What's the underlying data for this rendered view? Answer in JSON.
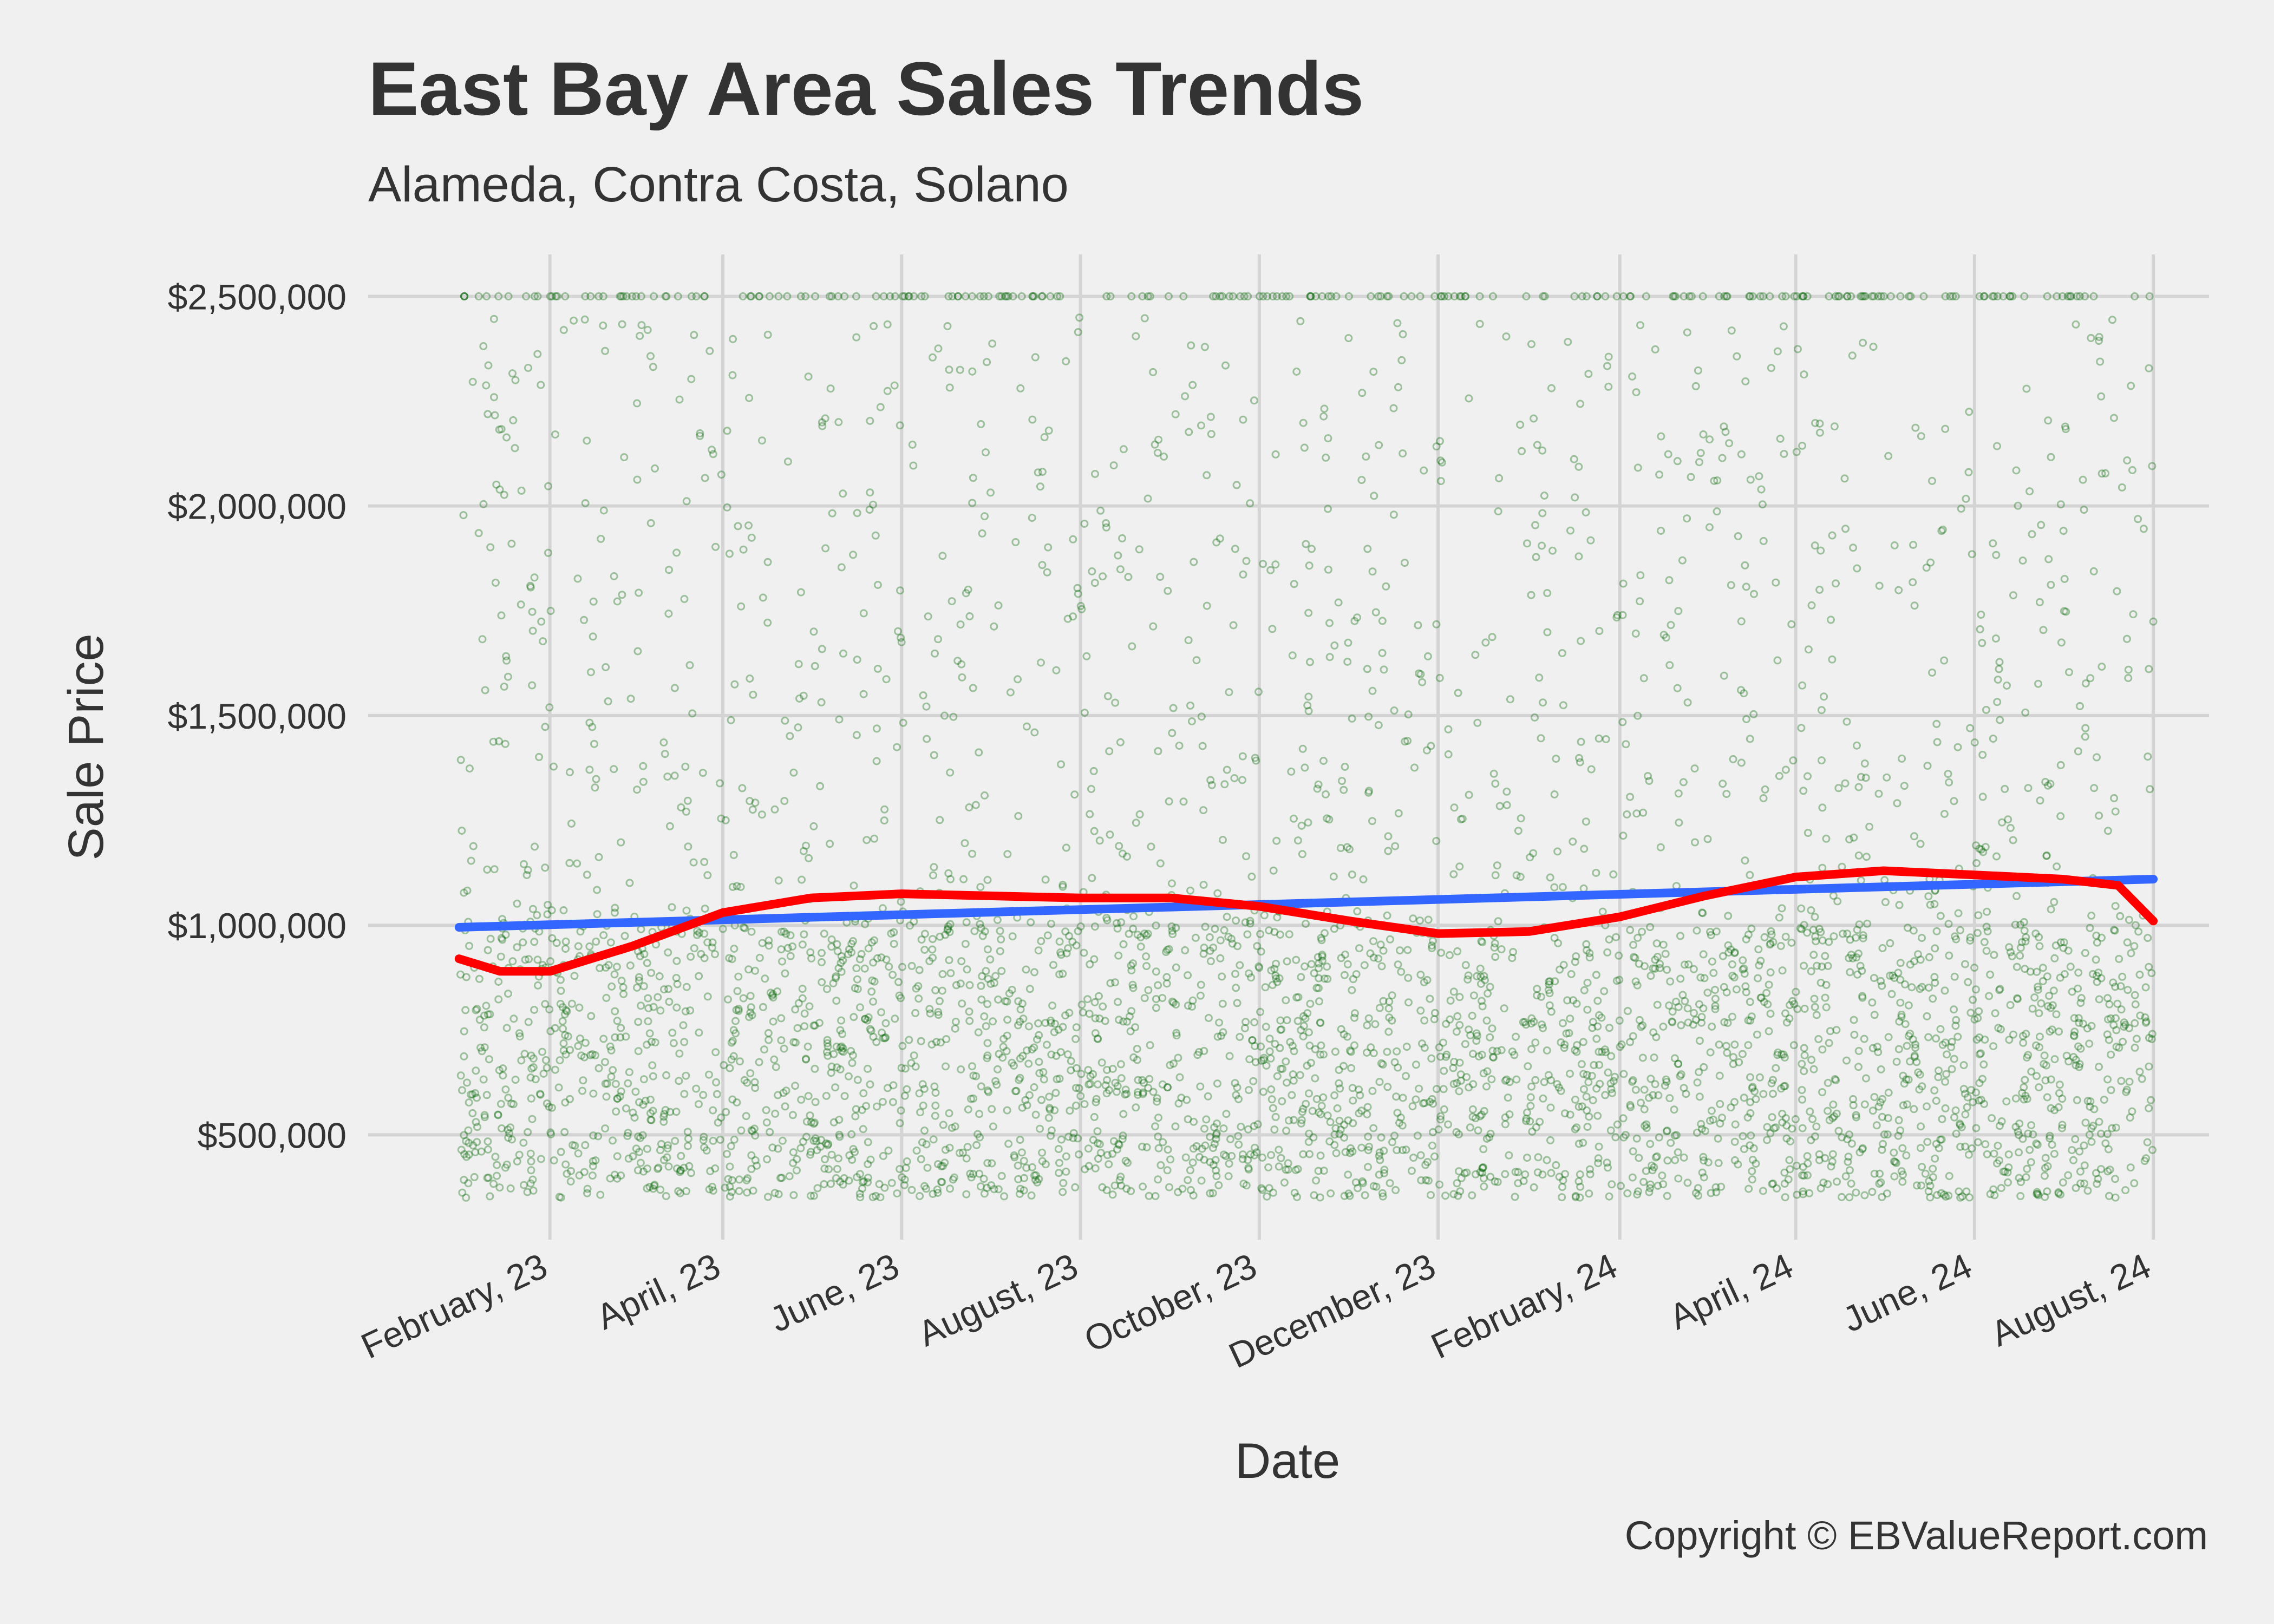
{
  "chart_data": {
    "type": "scatter",
    "title": "East Bay Area Sales Trends",
    "subtitle": "Alameda, Contra Costa, Solano",
    "xlabel": "Date",
    "ylabel": "Sale Price",
    "caption": "Copyright  © EBValueReport.com",
    "xlim": [
      "2022-12-01",
      "2024-08-20"
    ],
    "ylim": [
      250000,
      2600000
    ],
    "x_ticks": [
      {
        "date": "2023-02-01",
        "label": "February, 23"
      },
      {
        "date": "2023-04-01",
        "label": "April, 23"
      },
      {
        "date": "2023-06-01",
        "label": "June, 23"
      },
      {
        "date": "2023-08-01",
        "label": "August, 23"
      },
      {
        "date": "2023-10-01",
        "label": "October, 23"
      },
      {
        "date": "2023-12-01",
        "label": "December, 23"
      },
      {
        "date": "2024-02-01",
        "label": "February, 24"
      },
      {
        "date": "2024-04-01",
        "label": "April, 24"
      },
      {
        "date": "2024-06-01",
        "label": "June, 24"
      },
      {
        "date": "2024-08-01",
        "label": "August, 24"
      }
    ],
    "y_ticks": [
      {
        "value": 500000,
        "label": "$500,000"
      },
      {
        "value": 1000000,
        "label": "$1,000,000"
      },
      {
        "value": 1500000,
        "label": "$1,500,000"
      },
      {
        "value": 2000000,
        "label": "$2,000,000"
      },
      {
        "value": 2500000,
        "label": "$2,500,000"
      }
    ],
    "grid": true,
    "colors": {
      "points": "#006400",
      "linear_trend": "#3366ff",
      "smooth_trend": "#ff0000",
      "background": "#f0f0f0",
      "grid": "#d4d4d4",
      "text": "#333333"
    },
    "scatter_summary": {
      "x_range": [
        "2023-01-01",
        "2024-08-01"
      ],
      "y_range": [
        300000,
        2500000
      ],
      "density_note": "dense below $1,000,000, sparse toward $2,500,000 cap"
    },
    "series": [
      {
        "type": "line",
        "x": [
          "2023-01-01",
          "2024-08-01"
        ],
        "y": [
          995000,
          1110000
        ]
      },
      {
        "type": "line",
        "x": [
          "2023-01-01",
          "2023-01-15",
          "2023-02-01",
          "2023-03-01",
          "2023-04-01",
          "2023-05-01",
          "2023-06-01",
          "2023-07-01",
          "2023-08-01",
          "2023-09-01",
          "2023-10-01",
          "2023-11-01",
          "2023-12-01",
          "2024-01-01",
          "2024-02-01",
          "2024-03-01",
          "2024-04-01",
          "2024-05-01",
          "2024-06-01",
          "2024-07-01",
          "2024-07-20",
          "2024-08-01"
        ],
        "y": [
          920000,
          890000,
          890000,
          950000,
          1030000,
          1065000,
          1075000,
          1070000,
          1065000,
          1065000,
          1045000,
          1010000,
          980000,
          985000,
          1020000,
          1070000,
          1115000,
          1130000,
          1120000,
          1110000,
          1095000,
          1010000
        ]
      }
    ]
  }
}
